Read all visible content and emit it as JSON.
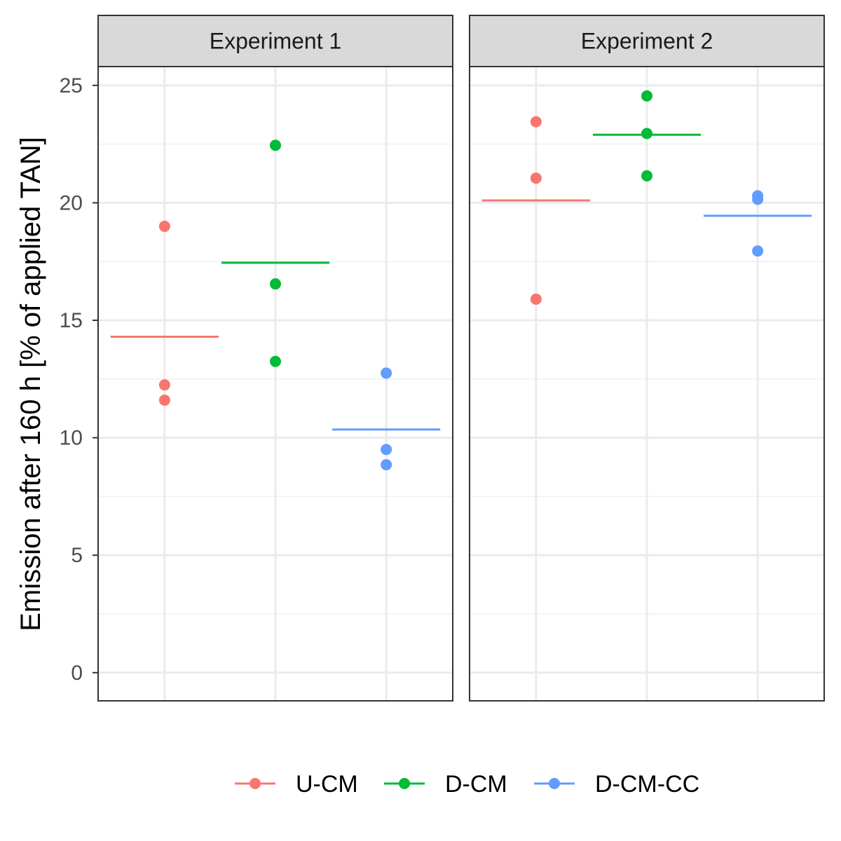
{
  "chart_data": {
    "type": "scatter",
    "ylabel": "Emission after 160 h [% of applied TAN]",
    "xlabel": "",
    "title": "",
    "ylim": [
      -1.2,
      25.8
    ],
    "yticks": [
      0,
      5,
      10,
      15,
      20,
      25
    ],
    "grid": true,
    "legend_position": "bottom",
    "categories": [
      "U-CM",
      "D-CM",
      "D-CM-CC"
    ],
    "colors": {
      "U-CM": "#F8766D",
      "D-CM": "#00BA38",
      "D-CM-CC": "#619CFF"
    },
    "panels": [
      {
        "label": "Experiment 1",
        "series": [
          {
            "name": "U-CM",
            "values": [
              19.0,
              12.25,
              11.6
            ],
            "mean": 14.3
          },
          {
            "name": "D-CM",
            "values": [
              22.45,
              16.55,
              13.25
            ],
            "mean": 17.45
          },
          {
            "name": "D-CM-CC",
            "values": [
              12.75,
              9.5,
              8.85
            ],
            "mean": 10.35
          }
        ]
      },
      {
        "label": "Experiment 2",
        "series": [
          {
            "name": "U-CM",
            "values": [
              23.45,
              21.05,
              15.9
            ],
            "mean": 20.1
          },
          {
            "name": "D-CM",
            "values": [
              24.55,
              22.95,
              21.15
            ],
            "mean": 22.9
          },
          {
            "name": "D-CM-CC",
            "values": [
              20.3,
              20.15,
              17.95
            ],
            "mean": 19.45
          }
        ]
      }
    ]
  }
}
